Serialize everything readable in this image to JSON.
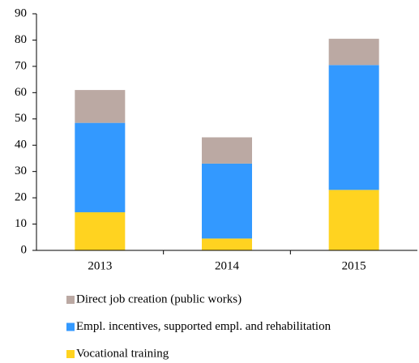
{
  "chart_data": {
    "type": "stacked-bar",
    "categories": [
      "2013",
      "2014",
      "2015"
    ],
    "series": [
      {
        "name": "Vocational training",
        "color": "#ffd320",
        "values": [
          14.5,
          4.5,
          23
        ]
      },
      {
        "name": "Empl. incentives, supported empl. and rehabilitation",
        "color": "#3399ff",
        "values": [
          34,
          28.5,
          47.5
        ]
      },
      {
        "name": "Direct job creation (public works)",
        "color": "#bba9a3",
        "values": [
          12.5,
          10,
          10
        ]
      }
    ],
    "ylim": [
      0,
      90
    ],
    "yticks": [
      0,
      10,
      20,
      30,
      40,
      50,
      60,
      70,
      80,
      90
    ],
    "grid": false
  }
}
